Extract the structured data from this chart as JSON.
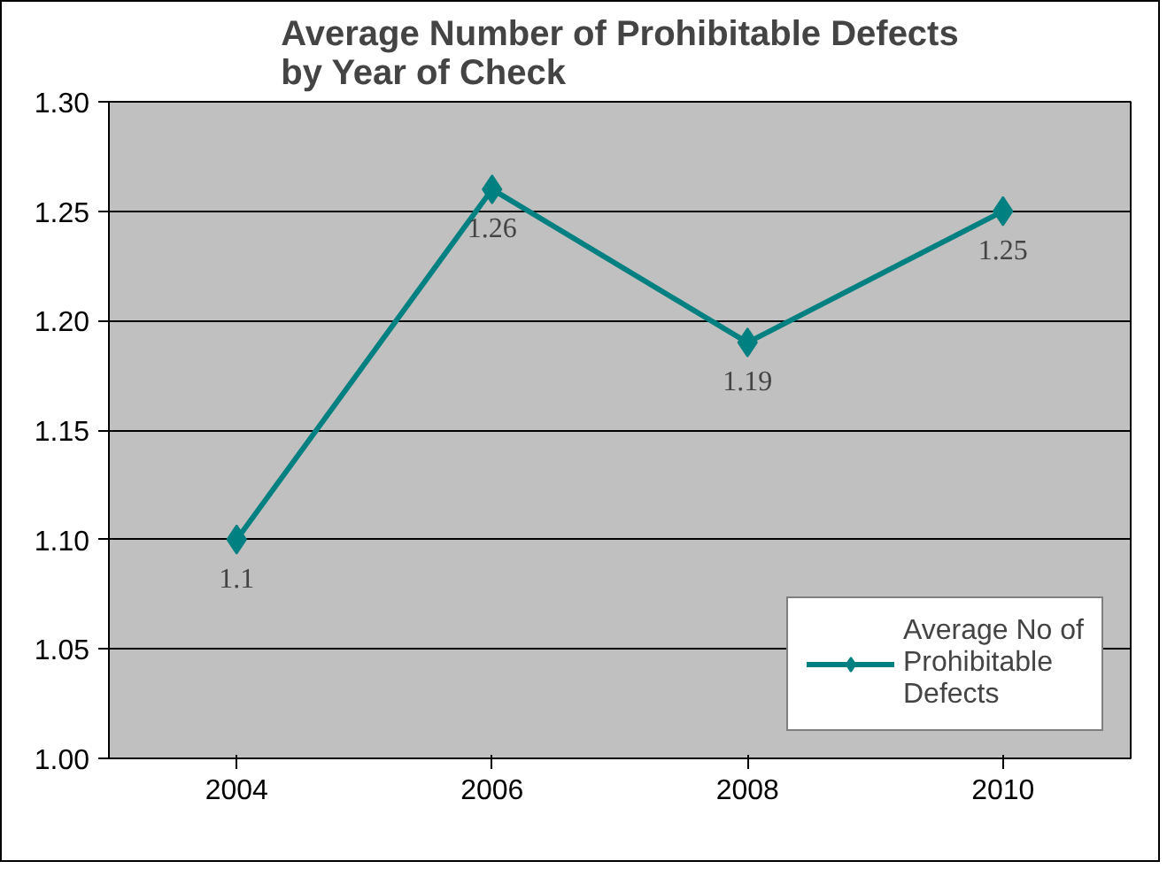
{
  "chart_data": {
    "type": "line",
    "title": "Average Number of Prohibitable Defects\nby Year of Check",
    "categories": [
      "2004",
      "2006",
      "2008",
      "2010"
    ],
    "series": [
      {
        "name": "Average No of Prohibitable Defects",
        "color": "#008080",
        "values": [
          1.1,
          1.26,
          1.19,
          1.25
        ]
      }
    ],
    "ylim": [
      1.0,
      1.3
    ],
    "yticks": [
      {
        "value": 1.0,
        "label": "1.00"
      },
      {
        "value": 1.05,
        "label": "1.05"
      },
      {
        "value": 1.1,
        "label": "1.10"
      },
      {
        "value": 1.15,
        "label": "1.15"
      },
      {
        "value": 1.2,
        "label": "1.20"
      },
      {
        "value": 1.25,
        "label": "1.25"
      },
      {
        "value": 1.3,
        "label": "1.30"
      }
    ],
    "grid": "y",
    "legend": "bottom right",
    "marker": "diamond",
    "line_style": "solid",
    "data_labels": true
  }
}
